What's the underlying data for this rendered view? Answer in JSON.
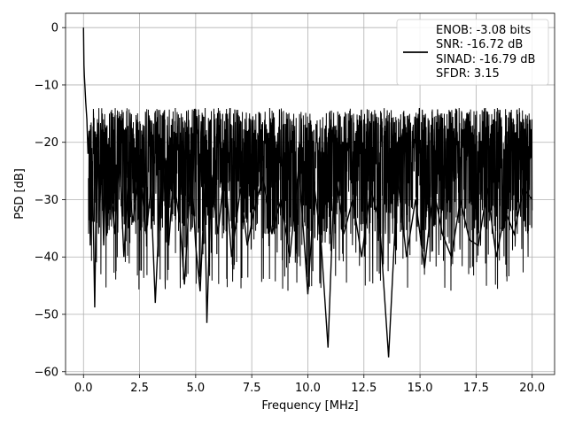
{
  "chart_data": {
    "type": "line",
    "title": "",
    "xlabel": "Frequency [MHz]",
    "ylabel": "PSD [dB]",
    "xlim": [
      -0.8,
      21.0
    ],
    "ylim": [
      -60.5,
      2.5
    ],
    "grid": true,
    "legend_position": "top-right",
    "line_color": "#000000",
    "x_ticks": [
      0.0,
      2.5,
      5.0,
      7.5,
      10.0,
      12.5,
      15.0,
      17.5,
      20.0
    ],
    "x_tick_labels": [
      "0.0",
      "2.5",
      "5.0",
      "7.5",
      "10.0",
      "12.5",
      "15.0",
      "17.5",
      "20.0"
    ],
    "y_ticks": [
      0,
      -10,
      -20,
      -30,
      -40,
      -50,
      -60
    ],
    "y_tick_labels": [
      "0",
      "−10",
      "−20",
      "−30",
      "−40",
      "−50",
      "−60"
    ],
    "legend_lines": [
      "ENOB: -3.08 bits",
      "SNR: -16.72 dB",
      "SINAD: -16.79 dB",
      "SFDR: 3.15"
    ],
    "series": [
      {
        "x": [
          0.0,
          0.02,
          0.04,
          0.06,
          0.08,
          0.1,
          0.15,
          0.2,
          0.25,
          0.3,
          0.4,
          0.5,
          0.6,
          0.7,
          0.8,
          0.9,
          1.0,
          1.2,
          1.4,
          1.6,
          1.8,
          2.0,
          2.2,
          2.5,
          2.8,
          3.0,
          3.2,
          3.5,
          3.8,
          4.0,
          4.3,
          4.5,
          4.8,
          5.0,
          5.2,
          5.4,
          5.5,
          5.7,
          6.0,
          6.3,
          6.6,
          7.0,
          7.3,
          7.6,
          8.0,
          8.4,
          8.8,
          9.2,
          9.6,
          10.0,
          10.3,
          10.6,
          10.9,
          11.2,
          11.6,
          12.0,
          12.4,
          12.8,
          13.2,
          13.6,
          14.0,
          14.4,
          14.8,
          15.2,
          15.6,
          16.0,
          16.4,
          16.8,
          17.2,
          17.6,
          18.0,
          18.4,
          18.8,
          19.2,
          19.6,
          20.0
        ],
        "y": [
          0.0,
          -6.5,
          -8.5,
          -10.0,
          -11.5,
          -13.0,
          -16.0,
          -22.0,
          -18.0,
          -38.0,
          -25.0,
          -48.8,
          -20.0,
          -32.0,
          -22.0,
          -38.0,
          -24.0,
          -28.0,
          -36.0,
          -22.0,
          -40.0,
          -26.0,
          -34.0,
          -24.0,
          -36.0,
          -28.0,
          -48.0,
          -22.0,
          -38.0,
          -26.0,
          -34.0,
          -44.8,
          -24.0,
          -38.0,
          -46.0,
          -28.0,
          -51.5,
          -26.0,
          -36.0,
          -24.0,
          -40.0,
          -28.0,
          -38.0,
          -32.0,
          -26.0,
          -36.0,
          -30.0,
          -40.0,
          -24.0,
          -46.5,
          -28.0,
          -38.0,
          -55.8,
          -24.0,
          -36.0,
          -30.0,
          -40.0,
          -28.0,
          -34.0,
          -57.5,
          -26.0,
          -40.0,
          -30.0,
          -42.0,
          -28.0,
          -36.0,
          -40.0,
          -30.0,
          -37.0,
          -38.0,
          -28.0,
          -40.0,
          -32.0,
          -36.0,
          -28.0,
          -30.0
        ]
      }
    ]
  }
}
